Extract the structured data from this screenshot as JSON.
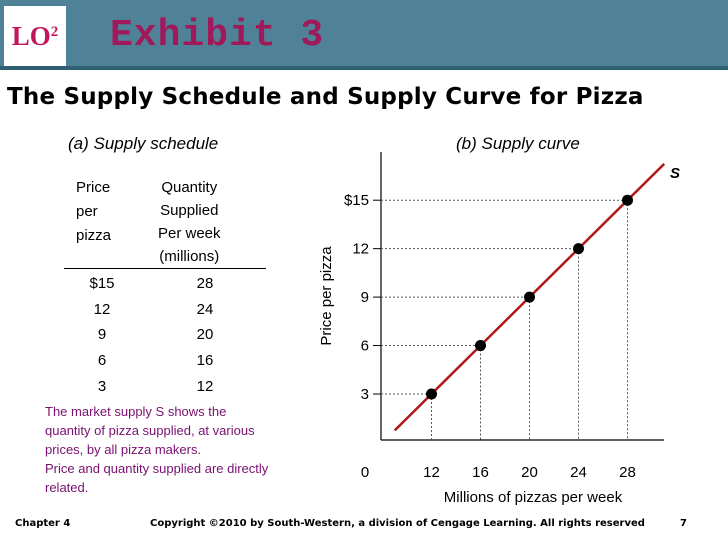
{
  "header": {
    "lo_label": "LO",
    "lo_superscript": "2",
    "exhibit_title": "Exhibit 3",
    "page_title": "The Supply Schedule and Supply Curve for Pizza"
  },
  "schedule": {
    "title": "(a) Supply schedule",
    "price_header": [
      "Price",
      "per",
      "pizza"
    ],
    "quantity_header": [
      "Quantity",
      "Supplied",
      "Per week",
      "(millions)"
    ],
    "rows": [
      {
        "price": "$15",
        "quantity": "28"
      },
      {
        "price": "12",
        "quantity": "24"
      },
      {
        "price": "9",
        "quantity": "20"
      },
      {
        "price": "6",
        "quantity": "16"
      },
      {
        "price": "3",
        "quantity": "12"
      }
    ]
  },
  "note": [
    "The market supply S shows the",
    "quantity of pizza supplied, at various",
    "prices, by all pizza makers.",
    "Price and quantity supplied are directly",
    "related."
  ],
  "chart_data": {
    "type": "line",
    "title": "(b) Supply curve",
    "xlabel": "Millions of pizzas per week",
    "ylabel": "Price per pizza",
    "origin_label": "0",
    "x_ticks": [
      12,
      16,
      20,
      24,
      28
    ],
    "y_ticks": [
      3,
      6,
      9,
      12,
      15
    ],
    "y_tick_labels": [
      "3",
      "6",
      "9",
      "12",
      "$15"
    ],
    "series": [
      {
        "name": "S",
        "x": [
          12,
          16,
          20,
          24,
          28
        ],
        "y": [
          3,
          6,
          9,
          12,
          15
        ]
      }
    ],
    "line_extends_to": {
      "x_low": 9,
      "y_low": 0.75,
      "x_high": 31,
      "y_high": 17.25
    },
    "dashed_guides": true,
    "line_color": "#b01717",
    "point_color": "#000000"
  },
  "footer": {
    "chapter": "Chapter 4",
    "copyright": "Copyright ©2010 by South-Western, a division of Cengage Learning.  All rights reserved",
    "page": "7"
  }
}
